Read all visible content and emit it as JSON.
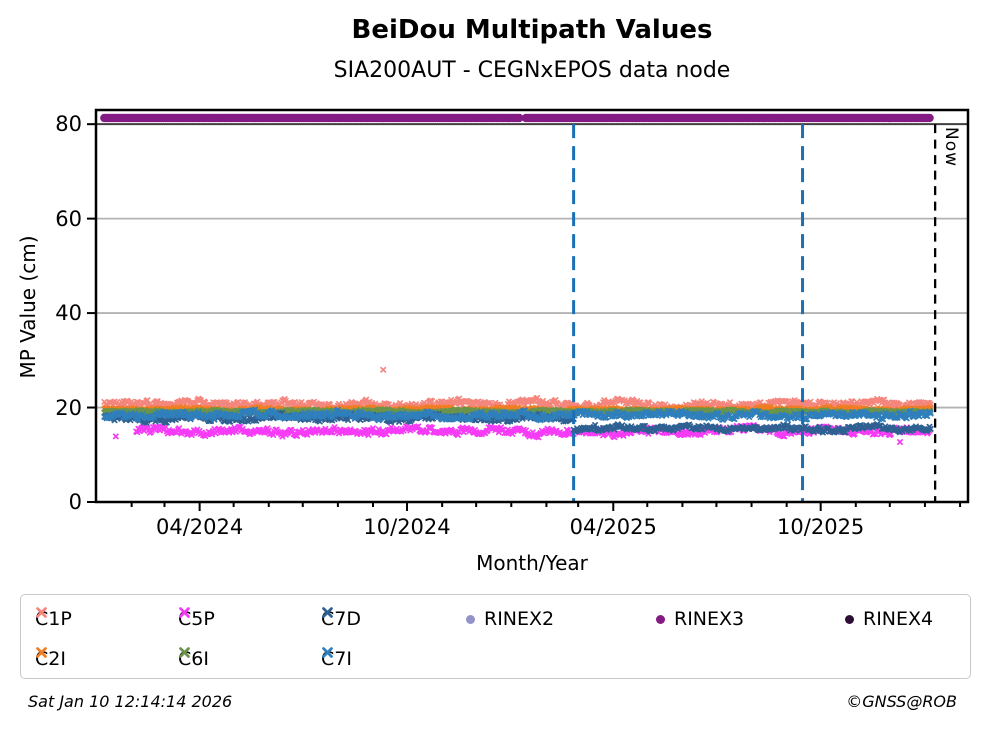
{
  "figure": {
    "footer_left": "Sat Jan 10 12:14:14 2026",
    "footer_right": "©GNSS@ROB"
  },
  "chart_data": {
    "type": "scatter",
    "title": "BeiDou Multipath Values",
    "subtitle": "SIA200AUT - CEGNxEPOS data node",
    "xlabel": "Month/Year",
    "ylabel": "MP Value (cm)",
    "ylim": [
      0,
      83
    ],
    "y_ticks": [
      0,
      20,
      40,
      60,
      80
    ],
    "x_start": "2024-01-01",
    "x_end": "2026-02-08",
    "data_start": "2024-01-08",
    "data_end": "2026-01-06",
    "x_major_ticks": [
      {
        "date": "2024-04-01",
        "label": "04/2024"
      },
      {
        "date": "2024-10-01",
        "label": "10/2024"
      },
      {
        "date": "2025-04-01",
        "label": "04/2025"
      },
      {
        "date": "2025-10-01",
        "label": "10/2025"
      }
    ],
    "x_minor_ticks": "monthly",
    "grid": {
      "y_values": [
        20,
        40,
        60
      ],
      "color": "#b3b3b3"
    },
    "threshold_line": {
      "y": 80,
      "color": "#404040"
    },
    "event_lines": [
      {
        "date": "2025-02-25",
        "color": "#1b6fb5",
        "style": "dashed"
      },
      {
        "date": "2025-09-15",
        "color": "#1b6fb5",
        "style": "dashed"
      }
    ],
    "now_line": {
      "date": "2026-01-10",
      "label": "Now",
      "color": "#000000",
      "style": "dashed"
    },
    "series": [
      {
        "name": "C1P",
        "marker": "x",
        "color": "#F4867E",
        "legend_row": 0,
        "legend_col": 0,
        "band": {
          "mean": 20.7,
          "spread": 0.55
        },
        "outliers": [
          {
            "date": "2024-09-10",
            "value": 28.0
          }
        ]
      },
      {
        "name": "C2I",
        "marker": "x",
        "color": "#F07D23",
        "legend_row": 1,
        "legend_col": 0,
        "band": {
          "mean": 19.55,
          "spread": 0.28
        }
      },
      {
        "name": "C5P",
        "marker": "x",
        "color": "#F53BF5",
        "legend_row": 0,
        "legend_col": 1,
        "start": "2024-02-05",
        "band": {
          "mean": 15.0,
          "spread": 0.55
        },
        "outliers": [
          {
            "date": "2024-01-18",
            "value": 13.9
          },
          {
            "date": "2025-12-10",
            "value": 12.7
          }
        ]
      },
      {
        "name": "C6I",
        "marker": "x",
        "color": "#69944A",
        "legend_row": 1,
        "legend_col": 1,
        "band": {
          "mean": 19.15,
          "spread": 0.22
        }
      },
      {
        "name": "C7D",
        "marker": "x",
        "color": "#2E6191",
        "legend_row": 0,
        "legend_col": 2,
        "segments": [
          {
            "from": "2024-01-08",
            "to": "2025-02-25",
            "mean": 17.85,
            "spread": 0.5
          },
          {
            "from": "2025-02-25",
            "to": "2026-01-06",
            "mean": 15.6,
            "spread": 0.45
          }
        ]
      },
      {
        "name": "C7I",
        "marker": "x",
        "color": "#2F7FBC",
        "legend_row": 1,
        "legend_col": 2,
        "band": {
          "mean": 18.4,
          "spread": 0.5
        }
      },
      {
        "name": "RINEX2",
        "marker": "circle",
        "color": "#9193C9",
        "legend_row": 0,
        "legend_col": 3,
        "visible_points": "none"
      },
      {
        "name": "RINEX3",
        "marker": "circle",
        "color": "#841A84",
        "legend_row": 0,
        "legend_col": 4,
        "line_value": 81.3,
        "line_segments": [
          {
            "from": "2024-01-08",
            "to": "2025-01-08"
          },
          {
            "from": "2025-01-14",
            "to": "2026-01-05"
          }
        ]
      },
      {
        "name": "RINEX4",
        "marker": "circle",
        "color": "#2E0E35",
        "legend_row": 0,
        "legend_col": 5,
        "visible_points": "none"
      }
    ]
  }
}
